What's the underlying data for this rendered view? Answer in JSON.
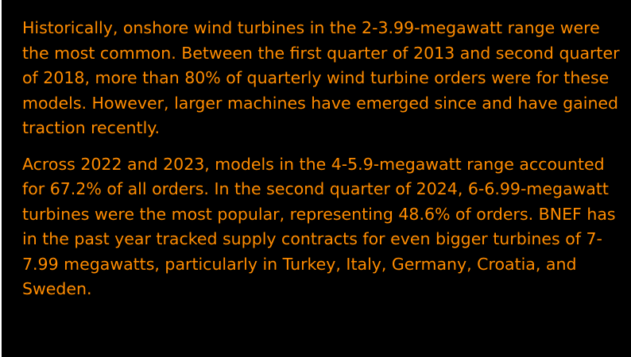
{
  "colors": {
    "background": "#000000",
    "text": "#ff8c00"
  },
  "paragraphs": [
    "Historically, onshore wind turbines in the 2-3.99-megawatt range were the most common. Between the first quarter of 2013 and second quarter of 2018, more than 80% of quarterly wind turbine orders were for these models. However, larger machines have emerged since and have gained traction recently.",
    "Across 2022 and 2023, models in the 4-5.9-megawatt range accounted for 67.2% of all orders. In the second quarter of 2024, 6-6.99-megawatt turbines were the most popular, representing 48.6% of orders. BNEF has in the past year tracked supply contracts for even bigger turbines of 7-7.99 megawatts, particularly in Turkey, Italy, Germany, Croatia, and Sweden."
  ]
}
